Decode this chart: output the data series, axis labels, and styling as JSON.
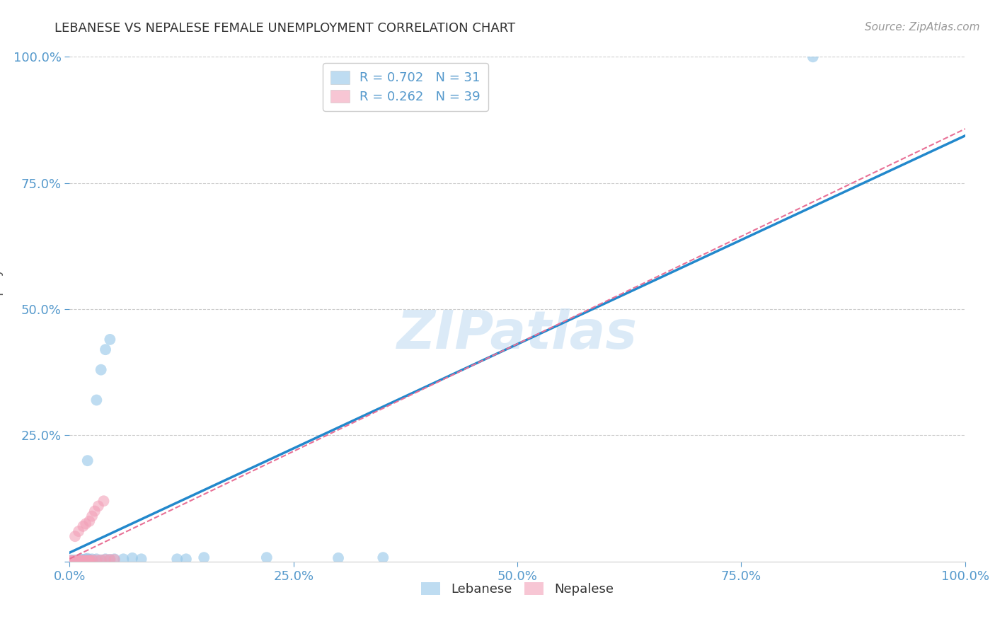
{
  "title": "LEBANESE VS NEPALESE FEMALE UNEMPLOYMENT CORRELATION CHART",
  "source": "Source: ZipAtlas.com",
  "ylabel": "Female Unemployment",
  "xlim": [
    0,
    1
  ],
  "ylim": [
    0,
    1
  ],
  "xticks": [
    0.0,
    0.25,
    0.5,
    0.75,
    1.0
  ],
  "yticks": [
    0.0,
    0.25,
    0.5,
    0.75,
    1.0
  ],
  "xticklabels": [
    "0.0%",
    "25.0%",
    "50.0%",
    "75.0%",
    "100.0%"
  ],
  "yticklabels": [
    "",
    "25.0%",
    "50.0%",
    "75.0%",
    "100.0%"
  ],
  "watermark": "ZIPatlas",
  "legend_top": [
    {
      "label": "R = 0.702   N = 31",
      "color": "#4da6e8"
    },
    {
      "label": "R = 0.262   N = 39",
      "color": "#4da6e8"
    }
  ],
  "legend_bottom": [
    "Lebanese",
    "Nepalese"
  ],
  "lebanese_color": "#93c6e8",
  "nepalese_color": "#f2a0b8",
  "lebanese_line_color": "#2288cc",
  "nepalese_line_color": "#e87096",
  "bg_color": "#ffffff",
  "grid_color": "#cccccc",
  "title_color": "#333333",
  "tick_color": "#5599cc",
  "leb_x": [
    0.002,
    0.004,
    0.006,
    0.008,
    0.01,
    0.012,
    0.015,
    0.018,
    0.02,
    0.022,
    0.025,
    0.03,
    0.035,
    0.04,
    0.045,
    0.05,
    0.06,
    0.07,
    0.08,
    0.12,
    0.13,
    0.15,
    0.22,
    0.3,
    0.35,
    0.02,
    0.03,
    0.035,
    0.04,
    0.045,
    0.83
  ],
  "leb_y": [
    0.003,
    0.002,
    0.003,
    0.002,
    0.003,
    0.005,
    0.004,
    0.005,
    0.006,
    0.004,
    0.005,
    0.005,
    0.003,
    0.005,
    0.004,
    0.005,
    0.005,
    0.007,
    0.005,
    0.005,
    0.005,
    0.008,
    0.008,
    0.007,
    0.008,
    0.2,
    0.32,
    0.38,
    0.42,
    0.44,
    1.0
  ],
  "nep_x": [
    0.0005,
    0.001,
    0.002,
    0.003,
    0.004,
    0.005,
    0.006,
    0.007,
    0.008,
    0.009,
    0.01,
    0.011,
    0.012,
    0.013,
    0.014,
    0.015,
    0.016,
    0.017,
    0.018,
    0.019,
    0.02,
    0.021,
    0.022,
    0.023,
    0.025,
    0.03,
    0.035,
    0.04,
    0.045,
    0.05,
    0.006,
    0.01,
    0.015,
    0.018,
    0.022,
    0.025,
    0.028,
    0.032,
    0.038
  ],
  "nep_y": [
    0.002,
    0.001,
    0.001,
    0.001,
    0.001,
    0.001,
    0.001,
    0.002,
    0.001,
    0.001,
    0.002,
    0.001,
    0.002,
    0.001,
    0.001,
    0.002,
    0.001,
    0.001,
    0.002,
    0.001,
    0.002,
    0.002,
    0.001,
    0.002,
    0.003,
    0.003,
    0.003,
    0.004,
    0.004,
    0.004,
    0.05,
    0.06,
    0.07,
    0.075,
    0.08,
    0.09,
    0.1,
    0.11,
    0.12
  ]
}
